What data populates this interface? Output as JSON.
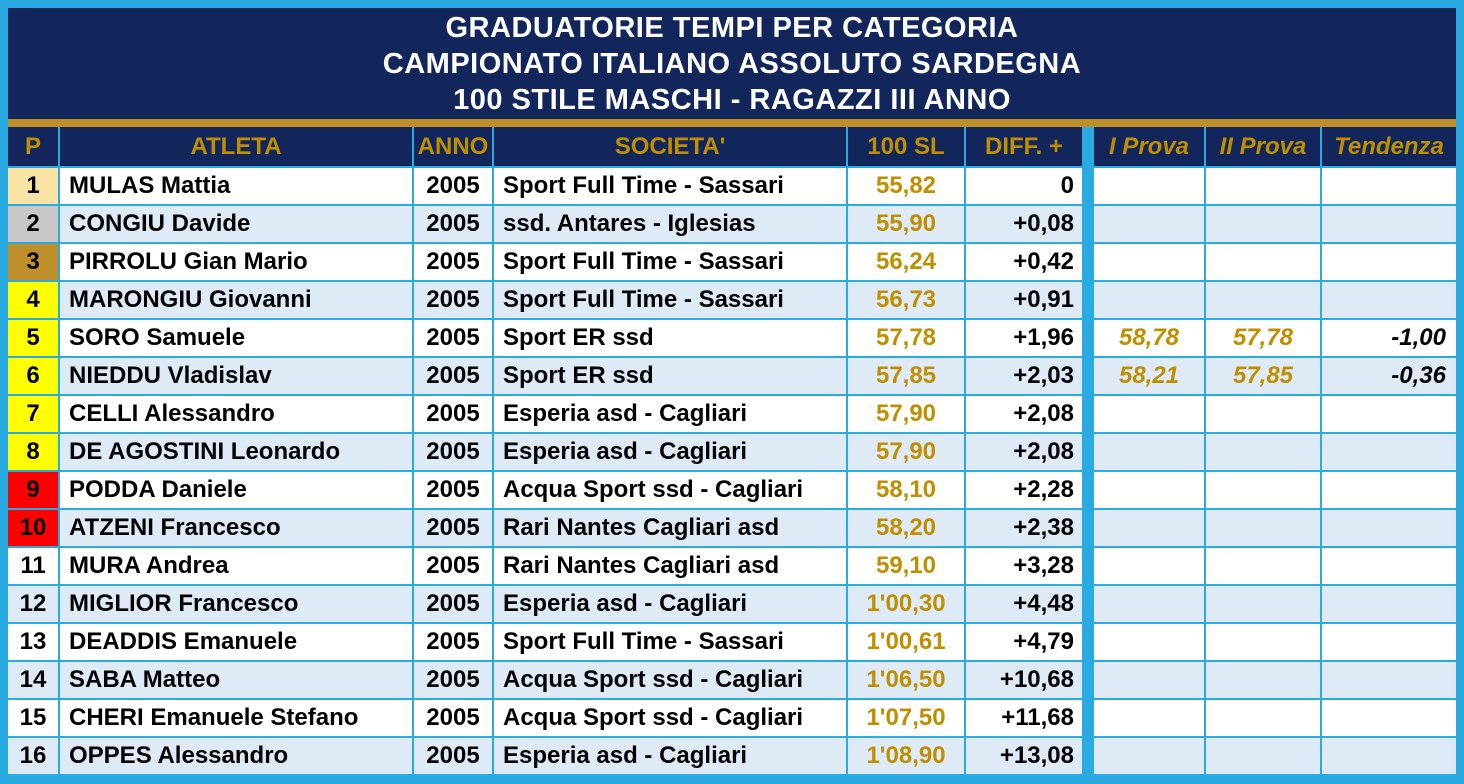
{
  "title": {
    "line1": "GRADUATORIE TEMPI PER CATEGORIA",
    "line2": "CAMPIONATO ITALIANO ASSOLUTO SARDEGNA",
    "line3": "100 STILE MASCHI - RAGAZZI III ANNO"
  },
  "columns": {
    "p": "P",
    "atleta": "ATLETA",
    "anno": "ANNO",
    "societa": "SOCIETA'",
    "time": "100 SL",
    "diff": "DIFF. +",
    "prova1": "I Prova",
    "prova2": "II Prova",
    "tendenza": "Tendenza"
  },
  "colors": {
    "frame": "#29ABE2",
    "navy": "#12265B",
    "gold": "#BF8F00",
    "gold_line": "#BE9027",
    "title_text": "#FFFFFF",
    "body_text": "#000000",
    "white_row": "#FFFFFF",
    "alt_row": "#DEEBF7",
    "medal_gold": "#F9E3A5",
    "medal_silver": "#C9C7C7",
    "medal_bronze": "#BF8F2B",
    "highlight_yellow": "#FFFF00",
    "highlight_red": "#FF0000"
  },
  "rows": [
    {
      "p": "1",
      "p_fill": "medal_gold",
      "atleta": "MULAS Mattia",
      "anno": "2005",
      "societa": "Sport Full Time - Sassari",
      "time": "55,82",
      "diff": "0",
      "prova1": "",
      "prova2": "",
      "tendenza": ""
    },
    {
      "p": "2",
      "p_fill": "medal_silver",
      "atleta": "CONGIU Davide",
      "anno": "2005",
      "societa": "ssd. Antares - Iglesias",
      "time": "55,90",
      "diff": "+0,08",
      "prova1": "",
      "prova2": "",
      "tendenza": ""
    },
    {
      "p": "3",
      "p_fill": "medal_bronze",
      "atleta": "PIRROLU Gian Mario",
      "anno": "2005",
      "societa": "Sport Full Time - Sassari",
      "time": "56,24",
      "diff": "+0,42",
      "prova1": "",
      "prova2": "",
      "tendenza": ""
    },
    {
      "p": "4",
      "p_fill": "highlight_yellow",
      "atleta": "MARONGIU Giovanni",
      "anno": "2005",
      "societa": "Sport Full Time - Sassari",
      "time": "56,73",
      "diff": "+0,91",
      "prova1": "",
      "prova2": "",
      "tendenza": ""
    },
    {
      "p": "5",
      "p_fill": "highlight_yellow",
      "atleta": "SORO Samuele",
      "anno": "2005",
      "societa": "Sport ER ssd",
      "time": "57,78",
      "diff": "+1,96",
      "prova1": "58,78",
      "prova2": "57,78",
      "tendenza": "-1,00"
    },
    {
      "p": "6",
      "p_fill": "highlight_yellow",
      "atleta": "NIEDDU Vladislav",
      "anno": "2005",
      "societa": "Sport ER ssd",
      "time": "57,85",
      "diff": "+2,03",
      "prova1": "58,21",
      "prova2": "57,85",
      "tendenza": "-0,36"
    },
    {
      "p": "7",
      "p_fill": "highlight_yellow",
      "atleta": "CELLI Alessandro",
      "anno": "2005",
      "societa": "Esperia asd - Cagliari",
      "time": "57,90",
      "diff": "+2,08",
      "prova1": "",
      "prova2": "",
      "tendenza": ""
    },
    {
      "p": "8",
      "p_fill": "highlight_yellow",
      "atleta": "DE AGOSTINI Leonardo",
      "anno": "2005",
      "societa": "Esperia asd - Cagliari",
      "time": "57,90",
      "diff": "+2,08",
      "prova1": "",
      "prova2": "",
      "tendenza": ""
    },
    {
      "p": "9",
      "p_fill": "highlight_red",
      "atleta": "PODDA Daniele",
      "anno": "2005",
      "societa": "Acqua Sport ssd - Cagliari",
      "time": "58,10",
      "diff": "+2,28",
      "prova1": "",
      "prova2": "",
      "tendenza": ""
    },
    {
      "p": "10",
      "p_fill": "highlight_red",
      "atleta": "ATZENI Francesco",
      "anno": "2005",
      "societa": "Rari Nantes Cagliari asd",
      "time": "58,20",
      "diff": "+2,38",
      "prova1": "",
      "prova2": "",
      "tendenza": ""
    },
    {
      "p": "11",
      "p_fill": "",
      "atleta": "MURA Andrea",
      "anno": "2005",
      "societa": "Rari Nantes Cagliari asd",
      "time": "59,10",
      "diff": "+3,28",
      "prova1": "",
      "prova2": "",
      "tendenza": ""
    },
    {
      "p": "12",
      "p_fill": "",
      "atleta": "MIGLIOR Francesco",
      "anno": "2005",
      "societa": "Esperia asd - Cagliari",
      "time": "1'00,30",
      "diff": "+4,48",
      "prova1": "",
      "prova2": "",
      "tendenza": ""
    },
    {
      "p": "13",
      "p_fill": "",
      "atleta": "DEADDIS Emanuele",
      "anno": "2005",
      "societa": "Sport Full Time - Sassari",
      "time": "1'00,61",
      "diff": "+4,79",
      "prova1": "",
      "prova2": "",
      "tendenza": ""
    },
    {
      "p": "14",
      "p_fill": "",
      "atleta": "SABA Matteo",
      "anno": "2005",
      "societa": "Acqua Sport ssd - Cagliari",
      "time": "1'06,50",
      "diff": "+10,68",
      "prova1": "",
      "prova2": "",
      "tendenza": ""
    },
    {
      "p": "15",
      "p_fill": "",
      "atleta": "CHERI Emanuele Stefano",
      "anno": "2005",
      "societa": "Acqua Sport ssd - Cagliari",
      "time": "1'07,50",
      "diff": "+11,68",
      "prova1": "",
      "prova2": "",
      "tendenza": ""
    },
    {
      "p": "16",
      "p_fill": "",
      "atleta": "OPPES Alessandro",
      "anno": "2005",
      "societa": "Esperia asd - Cagliari",
      "time": "1'08,90",
      "diff": "+13,08",
      "prova1": "",
      "prova2": "",
      "tendenza": ""
    }
  ]
}
